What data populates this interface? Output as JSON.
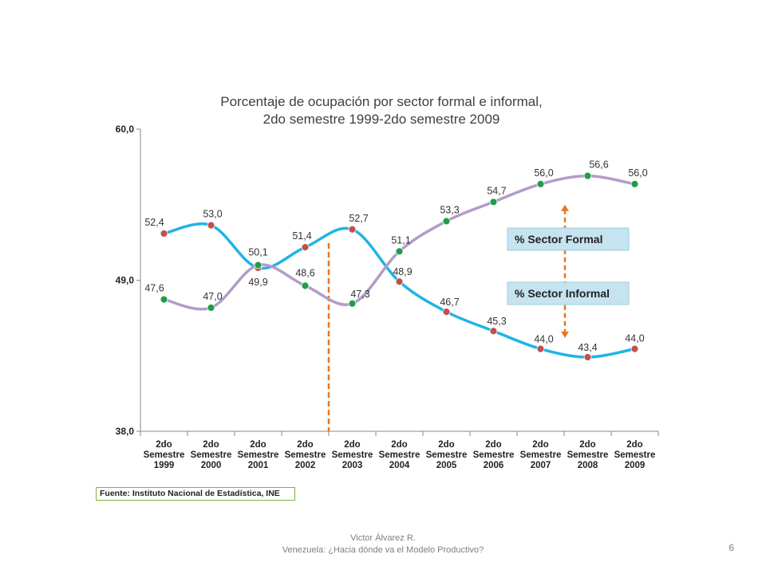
{
  "chart_data": {
    "type": "line",
    "title": "Porcentaje de ocupación por sector formal e informal,",
    "subtitle": "2do semestre 1999-2do semestre 2009",
    "categories": [
      [
        "2do",
        "Semestre",
        "1999"
      ],
      [
        "2do",
        "Semestre",
        "2000"
      ],
      [
        "2do",
        "Semestre",
        "2001"
      ],
      [
        "2do",
        "Semestre",
        "2002"
      ],
      [
        "2do",
        "Semestre",
        "2003"
      ],
      [
        "2do",
        "Semestre",
        "2004"
      ],
      [
        "2do",
        "Semestre",
        "2005"
      ],
      [
        "2do",
        "Semestre",
        "2006"
      ],
      [
        "2do",
        "Semestre",
        "2007"
      ],
      [
        "2do",
        "Semestre",
        "2008"
      ],
      [
        "2do",
        "Semestre",
        "2009"
      ]
    ],
    "ylim": [
      38.0,
      60.0
    ],
    "yticks": [
      "60,0",
      "49,0",
      "38,0"
    ],
    "ytick_values": [
      60.0,
      49.0,
      38.0
    ],
    "series": [
      {
        "name": "% Sector Informal",
        "line_color": "#1fb4e6",
        "marker_color": "#c0504d",
        "values": [
          52.4,
          53.0,
          49.9,
          51.4,
          52.7,
          48.9,
          46.7,
          45.3,
          44.0,
          43.4,
          44.0
        ],
        "labels": [
          "52,4",
          "53,0",
          "49,9",
          "51,4",
          "52,7",
          "48,9",
          "46,7",
          "45,3",
          "44,0",
          "43,4",
          "44,0"
        ]
      },
      {
        "name": "% Sector Formal",
        "line_color": "#b39cc8",
        "marker_color": "#1e9e4a",
        "values": [
          47.6,
          47.0,
          50.1,
          48.6,
          47.3,
          51.1,
          53.3,
          54.7,
          56.0,
          56.6,
          56.0
        ],
        "labels": [
          "47,6",
          "47,0",
          "50,1",
          "48,6",
          "47,3",
          "51,1",
          "53,3",
          "54,7",
          "56,0",
          "56,6",
          "56,0"
        ]
      }
    ],
    "legend": {
      "formal": "% Sector Formal",
      "informal": "% Sector Informal",
      "box_color": "#c6e3f0"
    },
    "annotation_colors": {
      "dashed_line": "#e87722",
      "arrow": "#e87722"
    }
  },
  "source": "Fuente: Instituto Nacional de Estadística, INE",
  "footer": {
    "line1": "Victor Álvarez R.",
    "line2": "Venezuela: ¿Hacia dónde va el Modelo Productivo?",
    "page_number": "6"
  }
}
